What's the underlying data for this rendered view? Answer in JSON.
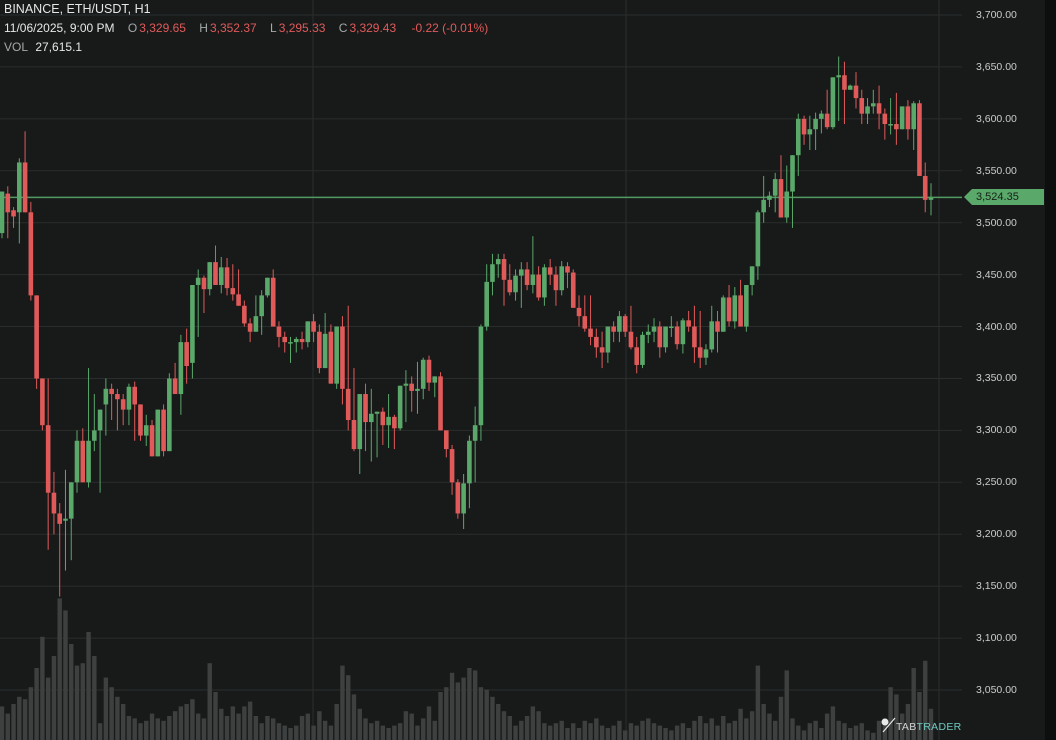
{
  "header": {
    "title": "BINANCE, ETH/USDT, H1",
    "datetime": "11/06/2025, 9:00 PM",
    "open_label": "O",
    "open": "3,329.65",
    "high_label": "H",
    "high": "3,352.37",
    "low_label": "L",
    "low": "3,295.33",
    "close_label": "C",
    "close": "3,329.43",
    "change": "-0.22 (-0.01%)",
    "volume_label": "VOL",
    "volume": "27,615.1"
  },
  "price_tag": {
    "value": "3,524.35",
    "price": 3524.35,
    "color": "#5aa86a"
  },
  "logo": {
    "part1": "TAB",
    "part2": "TRADER"
  },
  "colors": {
    "up": "#5aa86a",
    "down": "#e05a5a",
    "grid": "#2a2d2d",
    "volume": "#3e4040",
    "background": "#181a1a"
  },
  "chart_data": {
    "type": "candlestick",
    "title": "BINANCE, ETH/USDT, H1",
    "xlabel": "",
    "ylabel": "",
    "ylim": [
      3030,
      3714
    ],
    "y_ticks": [
      "3,700.00",
      "3,650.00",
      "3,600.00",
      "3,550.00",
      "3,500.00",
      "3,450.00",
      "3,400.00",
      "3,350.00",
      "3,300.00",
      "3,250.00",
      "3,200.00",
      "3,150.00",
      "3,100.00",
      "3,050.00"
    ],
    "y_tick_values": [
      3700,
      3650,
      3600,
      3550,
      3500,
      3450,
      3400,
      3350,
      3300,
      3250,
      3200,
      3150,
      3100,
      3050
    ],
    "grid": true,
    "last_price": 3524.35,
    "candles": [
      [
        3490,
        3530,
        3485,
        3530,
        28
      ],
      [
        3528,
        3535,
        3485,
        3510,
        22
      ],
      [
        3512,
        3515,
        3495,
        3506,
        30
      ],
      [
        3510,
        3562,
        3480,
        3558,
        36
      ],
      [
        3558,
        3588,
        3510,
        3510,
        34
      ],
      [
        3510,
        3520,
        3425,
        3430,
        44
      ],
      [
        3430,
        3430,
        3340,
        3350,
        60
      ],
      [
        3350,
        3350,
        3300,
        3305,
        86
      ],
      [
        3305,
        3350,
        3185,
        3240,
        52
      ],
      [
        3240,
        3260,
        3200,
        3220,
        70
      ],
      [
        3220,
        3230,
        3140,
        3210,
        118
      ],
      [
        3213,
        3262,
        3165,
        3215,
        108
      ],
      [
        3215,
        3250,
        3175,
        3250,
        80
      ],
      [
        3250,
        3300,
        3240,
        3290,
        62
      ],
      [
        3290,
        3302,
        3255,
        3250,
        64
      ],
      [
        3250,
        3360,
        3245,
        3290,
        90
      ],
      [
        3290,
        3335,
        3280,
        3300,
        70
      ],
      [
        3300,
        3320,
        3240,
        3320,
        14
      ],
      [
        3325,
        3350,
        3295,
        3340,
        52
      ],
      [
        3340,
        3345,
        3310,
        3335,
        44
      ],
      [
        3335,
        3340,
        3300,
        3330,
        36
      ],
      [
        3330,
        3335,
        3305,
        3320,
        30
      ],
      [
        3320,
        3345,
        3305,
        3342,
        20
      ],
      [
        3342,
        3347,
        3290,
        3325,
        18
      ],
      [
        3325,
        3325,
        3290,
        3295,
        14
      ],
      [
        3295,
        3315,
        3285,
        3305,
        16
      ],
      [
        3305,
        3310,
        3275,
        3275,
        22
      ],
      [
        3275,
        3320,
        3275,
        3320,
        18
      ],
      [
        3320,
        3325,
        3275,
        3280,
        16
      ],
      [
        3280,
        3355,
        3285,
        3350,
        20
      ],
      [
        3350,
        3365,
        3345,
        3335,
        24
      ],
      [
        3335,
        3392,
        3315,
        3385,
        28
      ],
      [
        3385,
        3398,
        3345,
        3362,
        30
      ],
      [
        3365,
        3440,
        3350,
        3440,
        34
      ],
      [
        3440,
        3455,
        3390,
        3447,
        22
      ],
      [
        3447,
        3449,
        3413,
        3436,
        18
      ],
      [
        3436,
        3462,
        3430,
        3462,
        64
      ],
      [
        3462,
        3478,
        3440,
        3440,
        40
      ],
      [
        3440,
        3467,
        3432,
        3457,
        26
      ],
      [
        3457,
        3466,
        3430,
        3437,
        20
      ],
      [
        3437,
        3460,
        3425,
        3431,
        28
      ],
      [
        3431,
        3455,
        3420,
        3420,
        22
      ],
      [
        3420,
        3425,
        3400,
        3403,
        28
      ],
      [
        3403,
        3408,
        3385,
        3395,
        32
      ],
      [
        3395,
        3430,
        3395,
        3410,
        20
      ],
      [
        3410,
        3435,
        3392,
        3430,
        14
      ],
      [
        3430,
        3447,
        3428,
        3447,
        20
      ],
      [
        3447,
        3455,
        3400,
        3400,
        18
      ],
      [
        3400,
        3405,
        3380,
        3390,
        14
      ],
      [
        3390,
        3395,
        3375,
        3385,
        12
      ],
      [
        3385,
        3390,
        3365,
        3385,
        10
      ],
      [
        3385,
        3390,
        3375,
        3388,
        12
      ],
      [
        3388,
        3395,
        3378,
        3385,
        20
      ],
      [
        3385,
        3405,
        3380,
        3405,
        22
      ],
      [
        3405,
        3412,
        3385,
        3395,
        12
      ],
      [
        3395,
        3402,
        3355,
        3360,
        24
      ],
      [
        3360,
        3413,
        3360,
        3393,
        16
      ],
      [
        3395,
        3402,
        3345,
        3345,
        12
      ],
      [
        3345,
        3400,
        3340,
        3400,
        30
      ],
      [
        3400,
        3410,
        3325,
        3340,
        62
      ],
      [
        3340,
        3420,
        3300,
        3310,
        54
      ],
      [
        3310,
        3360,
        3280,
        3282,
        38
      ],
      [
        3282,
        3312,
        3258,
        3335,
        26
      ],
      [
        3335,
        3345,
        3280,
        3308,
        18
      ],
      [
        3308,
        3340,
        3270,
        3316,
        14
      ],
      [
        3316,
        3318,
        3274,
        3318,
        16
      ],
      [
        3318,
        3322,
        3286,
        3305,
        12
      ],
      [
        3305,
        3335,
        3283,
        3313,
        10
      ],
      [
        3313,
        3315,
        3282,
        3302,
        12
      ],
      [
        3302,
        3343,
        3300,
        3343,
        14
      ],
      [
        3343,
        3358,
        3308,
        3345,
        24
      ],
      [
        3345,
        3352,
        3318,
        3338,
        22
      ],
      [
        3338,
        3366,
        3316,
        3340,
        12
      ],
      [
        3340,
        3370,
        3330,
        3368,
        18
      ],
      [
        3368,
        3372,
        3338,
        3346,
        28
      ],
      [
        3346,
        3352,
        3332,
        3352,
        16
      ],
      [
        3352,
        3356,
        3300,
        3300,
        40
      ],
      [
        3300,
        3300,
        3274,
        3282,
        44
      ],
      [
        3282,
        3286,
        3238,
        3250,
        56
      ],
      [
        3250,
        3253,
        3215,
        3220,
        48
      ],
      [
        3220,
        3258,
        3205,
        3249,
        52
      ],
      [
        3249,
        3295,
        3225,
        3290,
        60
      ],
      [
        3290,
        3323,
        3250,
        3305,
        58
      ],
      [
        3305,
        3402,
        3290,
        3400,
        44
      ],
      [
        3400,
        3460,
        3396,
        3443,
        42
      ],
      [
        3443,
        3470,
        3430,
        3460,
        36
      ],
      [
        3460,
        3470,
        3447,
        3465,
        30
      ],
      [
        3465,
        3470,
        3420,
        3445,
        24
      ],
      [
        3445,
        3460,
        3430,
        3433,
        20
      ],
      [
        3433,
        3455,
        3425,
        3449,
        12
      ],
      [
        3449,
        3462,
        3418,
        3455,
        16
      ],
      [
        3455,
        3462,
        3435,
        3440,
        20
      ],
      [
        3440,
        3487,
        3432,
        3450,
        28
      ],
      [
        3450,
        3458,
        3425,
        3428,
        24
      ],
      [
        3428,
        3460,
        3420,
        3457,
        14
      ],
      [
        3457,
        3465,
        3440,
        3450,
        12
      ],
      [
        3450,
        3458,
        3420,
        3435,
        14
      ],
      [
        3435,
        3463,
        3430,
        3458,
        16
      ],
      [
        3458,
        3462,
        3437,
        3452,
        10
      ],
      [
        3452,
        3455,
        3420,
        3418,
        14
      ],
      [
        3418,
        3430,
        3400,
        3410,
        10
      ],
      [
        3410,
        3430,
        3395,
        3398,
        16
      ],
      [
        3398,
        3430,
        3382,
        3390,
        14
      ],
      [
        3390,
        3398,
        3370,
        3380,
        18
      ],
      [
        3380,
        3395,
        3360,
        3375,
        12
      ],
      [
        3375,
        3400,
        3365,
        3400,
        10
      ],
      [
        3400,
        3405,
        3385,
        3395,
        12
      ],
      [
        3395,
        3415,
        3385,
        3410,
        16
      ],
      [
        3410,
        3412,
        3390,
        3395,
        8
      ],
      [
        3395,
        3420,
        3378,
        3380,
        14
      ],
      [
        3380,
        3390,
        3355,
        3363,
        12
      ],
      [
        3363,
        3395,
        3360,
        3392,
        16
      ],
      [
        3392,
        3402,
        3384,
        3395,
        18
      ],
      [
        3395,
        3408,
        3385,
        3400,
        14
      ],
      [
        3400,
        3405,
        3370,
        3380,
        12
      ],
      [
        3380,
        3400,
        3375,
        3400,
        10
      ],
      [
        3400,
        3410,
        3390,
        3400,
        8
      ],
      [
        3400,
        3405,
        3378,
        3383,
        12
      ],
      [
        3383,
        3408,
        3374,
        3406,
        14
      ],
      [
        3406,
        3415,
        3395,
        3400,
        10
      ],
      [
        3400,
        3420,
        3365,
        3380,
        16
      ],
      [
        3380,
        3415,
        3360,
        3370,
        20
      ],
      [
        3370,
        3383,
        3363,
        3378,
        14
      ],
      [
        3378,
        3420,
        3375,
        3405,
        18
      ],
      [
        3405,
        3415,
        3375,
        3395,
        12
      ],
      [
        3395,
        3430,
        3395,
        3428,
        20
      ],
      [
        3428,
        3440,
        3400,
        3405,
        14
      ],
      [
        3405,
        3438,
        3398,
        3430,
        16
      ],
      [
        3430,
        3445,
        3400,
        3400,
        26
      ],
      [
        3400,
        3440,
        3395,
        3440,
        18
      ],
      [
        3440,
        3458,
        3430,
        3458,
        24
      ],
      [
        3458,
        3512,
        3445,
        3510,
        62
      ],
      [
        3510,
        3545,
        3500,
        3522,
        30
      ],
      [
        3522,
        3530,
        3515,
        3526,
        22
      ],
      [
        3526,
        3548,
        3510,
        3542,
        16
      ],
      [
        3542,
        3565,
        3515,
        3505,
        36
      ],
      [
        3505,
        3555,
        3500,
        3530,
        58
      ],
      [
        3530,
        3565,
        3495,
        3565,
        18
      ],
      [
        3565,
        3605,
        3545,
        3600,
        12
      ],
      [
        3600,
        3603,
        3575,
        3585,
        8
      ],
      [
        3585,
        3603,
        3570,
        3590,
        14
      ],
      [
        3590,
        3606,
        3570,
        3600,
        16
      ],
      [
        3600,
        3608,
        3586,
        3605,
        10
      ],
      [
        3605,
        3628,
        3590,
        3592,
        22
      ],
      [
        3592,
        3640,
        3590,
        3640,
        28
      ],
      [
        3640,
        3660,
        3598,
        3642,
        16
      ],
      [
        3642,
        3655,
        3595,
        3628,
        14
      ],
      [
        3628,
        3633,
        3628,
        3632,
        10
      ],
      [
        3632,
        3645,
        3610,
        3620,
        12
      ],
      [
        3620,
        3628,
        3595,
        3605,
        14
      ],
      [
        3605,
        3620,
        3595,
        3612,
        8
      ],
      [
        3612,
        3628,
        3605,
        3615,
        6
      ],
      [
        3615,
        3632,
        3590,
        3605,
        16
      ],
      [
        3605,
        3610,
        3580,
        3595,
        18
      ],
      [
        3595,
        3620,
        3585,
        3595,
        44
      ],
      [
        3595,
        3625,
        3575,
        3590,
        38
      ],
      [
        3590,
        3605,
        3590,
        3612,
        22
      ],
      [
        3612,
        3618,
        3580,
        3590,
        30
      ],
      [
        3590,
        3617,
        3570,
        3615,
        60
      ],
      [
        3615,
        3618,
        3545,
        3545,
        40
      ],
      [
        3545,
        3558,
        3510,
        3522,
        66
      ],
      [
        3522,
        3538,
        3507,
        3524,
        26
      ]
    ]
  }
}
